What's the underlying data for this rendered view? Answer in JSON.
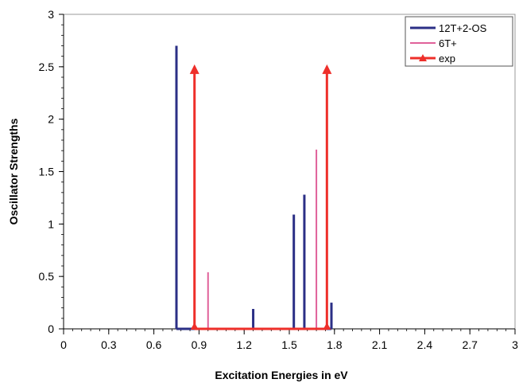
{
  "chart_data": {
    "type": "bar",
    "title": "",
    "xlabel": "Excitation Energies in eV",
    "ylabel": "Oscillator Strengths",
    "xlim": [
      0,
      3
    ],
    "ylim": [
      0,
      3
    ],
    "x_ticks": [
      "0",
      "0.3",
      "0.6",
      "0.9",
      "1.2",
      "1.5",
      "1.8",
      "2.1",
      "2.4",
      "2.7",
      "3"
    ],
    "y_ticks": [
      "0",
      "0.5",
      "1",
      "1.5",
      "2",
      "2.5",
      "3"
    ],
    "grid": false,
    "legend_position": "top-right",
    "series": [
      {
        "name": "12T+2-OS",
        "color": "#2b2f86",
        "points": [
          {
            "x": 0.75,
            "y": 2.7
          },
          {
            "x": 1.26,
            "y": 0.19
          },
          {
            "x": 1.53,
            "y": 1.09
          },
          {
            "x": 1.6,
            "y": 1.28
          },
          {
            "x": 1.78,
            "y": 0.25
          }
        ]
      },
      {
        "name": "6T+",
        "color": "#e0619a",
        "points": [
          {
            "x": 0.96,
            "y": 0.54
          },
          {
            "x": 1.68,
            "y": 1.71
          }
        ]
      },
      {
        "name": "exp",
        "color": "#ee2f2a",
        "points": [
          {
            "x": 0.87,
            "y": 2.5
          },
          {
            "x": 1.75,
            "y": 2.5
          }
        ]
      }
    ]
  }
}
